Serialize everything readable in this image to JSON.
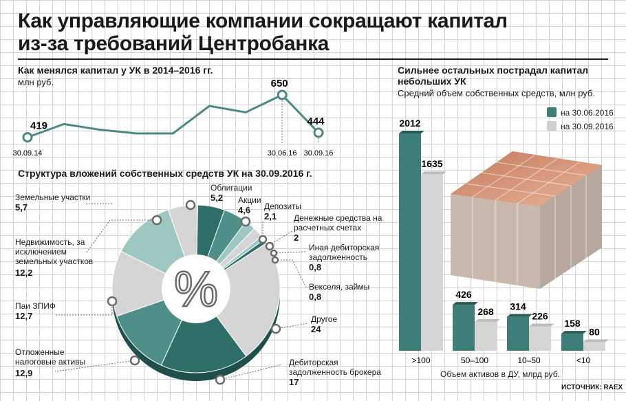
{
  "header": {
    "title_line1": "Как управляющие компании сокращают капитал",
    "title_line2": "из-за требований Центробанка"
  },
  "colors": {
    "dark_teal": "#2f6e68",
    "mid_teal": "#4f8f89",
    "light_teal": "#9fc7c1",
    "light_gray": "#d5d5d5",
    "mid_gray": "#c4c4c4",
    "line": "#4a8a84"
  },
  "money_icon": "banknote-stack-image",
  "percent_icon": "percent-sign",
  "source": "ИСТОЧНИК: RAEX",
  "chart_data": [
    {
      "type": "line",
      "title": "Как менялся капитал у УК в 2014–2016 гг.",
      "subtitle": "млн руб.",
      "values": [
        419,
        491,
        460,
        440,
        440,
        590,
        555,
        650,
        444
      ],
      "labeled_points": [
        {
          "index": 0,
          "value": "419",
          "date": "30.09.14"
        },
        {
          "index": 7,
          "value": "650",
          "date": "30.06.16"
        },
        {
          "index": 8,
          "value": "444",
          "date": "30.09.16"
        }
      ],
      "ylim": [
        380,
        680
      ]
    },
    {
      "type": "pie",
      "title": "Структура вложений собственных средств УК на 30.09.2016 г.",
      "center_label": "%",
      "slices": [
        {
          "name": "Облигации",
          "value": "5,2",
          "color": "dark"
        },
        {
          "name": "Акции",
          "value": "4,6",
          "color": "mid"
        },
        {
          "name": "Депозиты",
          "value": "2,1",
          "color": "light"
        },
        {
          "name": "Денежные средства на расчетных счетах",
          "value": "2",
          "color": "gray"
        },
        {
          "name": "Иная дебиторская задолженность",
          "value": "0,8",
          "color": "light"
        },
        {
          "name": "Векселя, займы",
          "value": "0,8",
          "color": "dark"
        },
        {
          "name": "Другое",
          "value": "24",
          "color": "gray"
        },
        {
          "name": "Дебиторская задолженность брокера",
          "value": "17",
          "color": "dark"
        },
        {
          "name": "Отложенные налоговые активы",
          "value": "12,9",
          "color": "mid"
        },
        {
          "name": "Паи ЗПИФ",
          "value": "12,7",
          "color": "gray"
        },
        {
          "name": "Недвижимость, за исключением земельных участков",
          "value": "12,2",
          "color": "light"
        },
        {
          "name": "Земельные участки",
          "value": "5,7",
          "color": "gray"
        }
      ]
    },
    {
      "type": "bar",
      "title": "Сильнее остальных пострадал капитал небольших УК",
      "subtitle": "Средний объем собственных средств, млн руб.",
      "xlabel": "Объем активов в ДУ, млрд руб.",
      "categories": [
        ">100",
        "50–100",
        "10–50",
        "<10"
      ],
      "series": [
        {
          "name": "на 30.06.2016",
          "values": [
            2012,
            426,
            314,
            158
          ]
        },
        {
          "name": "на 30.09.2016",
          "values": [
            1635,
            268,
            226,
            80
          ]
        }
      ],
      "ylim": [
        0,
        2012
      ]
    }
  ]
}
